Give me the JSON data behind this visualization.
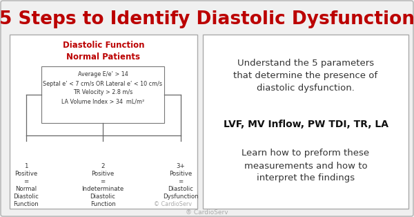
{
  "title": "5 Steps to Identify Diastolic Dysfunction",
  "title_color": "#bb0000",
  "title_fontsize": 19,
  "bg_color": "#f0f0f0",
  "outer_border_color": "#bbbbbb",
  "left_box_title": "Diastolic Function\nNormal Patients",
  "left_box_title_color": "#bb0000",
  "criteria_lines": [
    "Average E/e’ > 14",
    "Septal e’ < 7 cm/s OR Lateral e’ < 10 cm/s",
    "TR Velocity > 2.8 m/s",
    "LA Volume Index > 34  mL/m²"
  ],
  "outcome1_label": "1\nPositive\n=\nNormal\nDiastolic\nFunction",
  "outcome2_label": "2\nPositive\n=\nIndeterminate\nDiastolic\nFunction",
  "outcome3_label": "3+\nPositive\n=\nDiastolic\nDysfunction",
  "cardioserv_left": "© CardioServ",
  "right_text1": "Understand the 5 parameters\nthat determine the presence of\ndiastolic dysfunction.",
  "right_text2": "LVF, MV Inflow, PW TDI, TR, LA",
  "right_text3": "Learn how to preform these\nmeasurements and how to\ninterpret the findings",
  "footer": "® CardioServ",
  "footer_color": "#aaaaaa",
  "line_color": "#666666",
  "panel_edge_color": "#aaaaaa",
  "text_color": "#333333"
}
